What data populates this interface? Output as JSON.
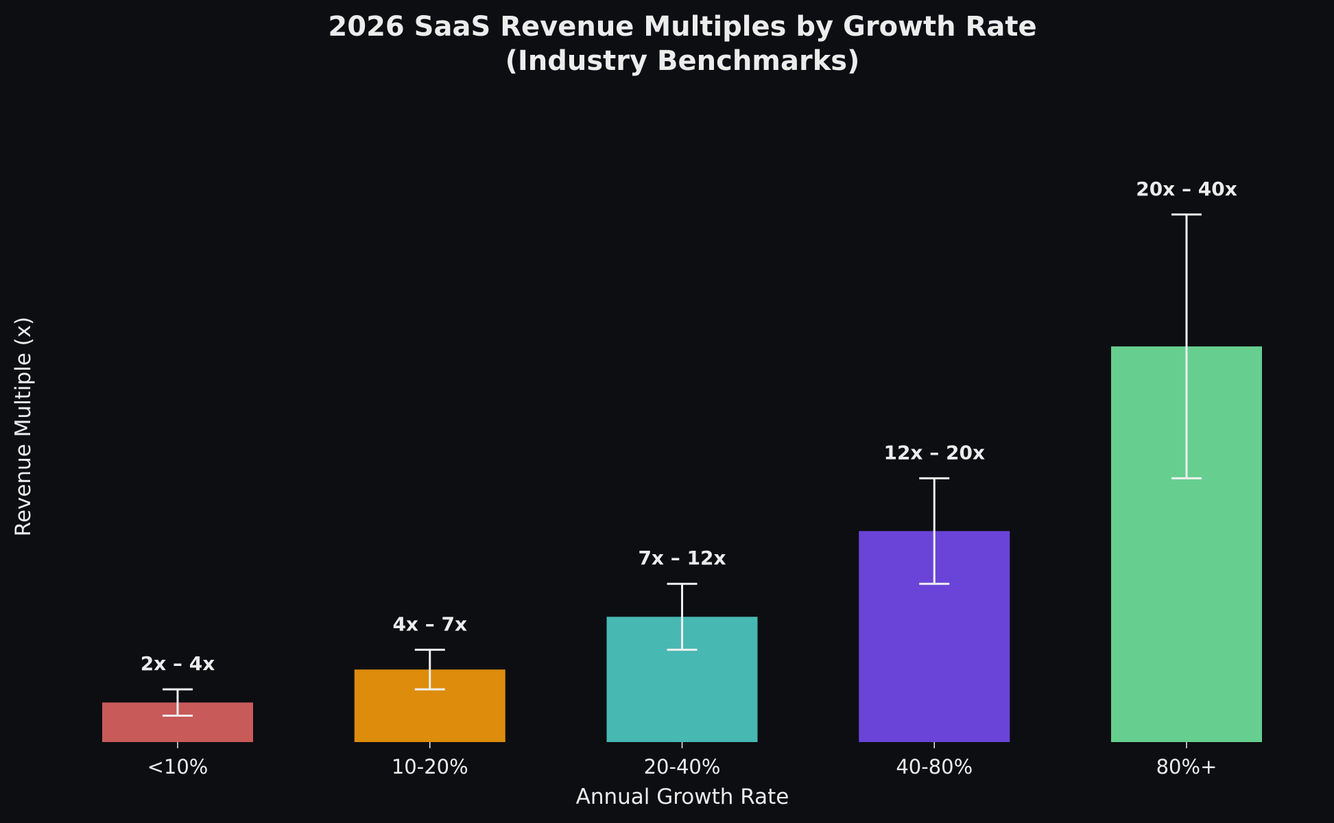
{
  "chart_data": {
    "type": "bar",
    "title": "2026 SaaS Revenue Multiples by Growth Rate",
    "subtitle": "(Industry Benchmarks)",
    "xlabel": "Annual Growth Rate",
    "ylabel": "Revenue Multiple (x)",
    "categories": [
      "<10%",
      "10-20%",
      "20-40%",
      "40-80%",
      "80%+"
    ],
    "values": [
      3,
      5.5,
      9.5,
      16,
      30
    ],
    "ranges": [
      [
        2,
        4
      ],
      [
        4,
        7
      ],
      [
        7,
        12
      ],
      [
        12,
        20
      ],
      [
        20,
        40
      ]
    ],
    "range_labels": [
      "2x – 4x",
      "4x – 7x",
      "7x – 12x",
      "12x – 20x",
      "20x – 40x"
    ],
    "colors": [
      "#c85a5a",
      "#dd8c0c",
      "#48b8b2",
      "#6a44d8",
      "#66cf8f"
    ],
    "errorbar_color": "#f0f0f0",
    "background": "#0d0e12",
    "ylim": [
      0,
      44
    ],
    "y_ticks_shown": false,
    "grid": false
  }
}
